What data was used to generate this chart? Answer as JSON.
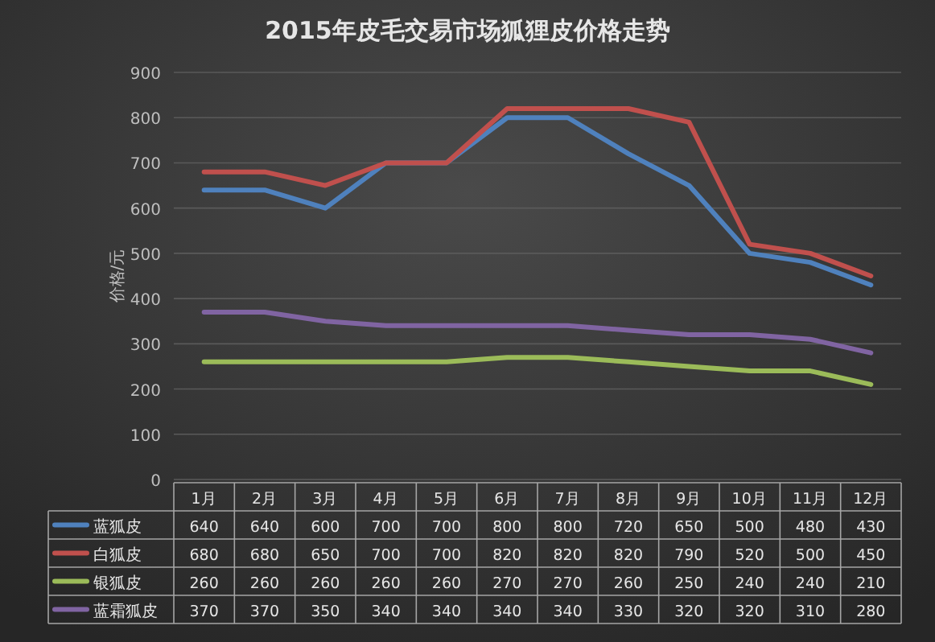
{
  "chart_data": {
    "type": "line",
    "title": "2015年皮毛交易市场狐狸皮价格走势",
    "ylabel": "价格/元",
    "categories": [
      "1月",
      "2月",
      "3月",
      "4月",
      "5月",
      "6月",
      "7月",
      "8月",
      "9月",
      "10月",
      "11月",
      "12月"
    ],
    "series": [
      {
        "name": "蓝狐皮",
        "color": "#4f81bd",
        "values": [
          640,
          640,
          600,
          700,
          700,
          800,
          800,
          720,
          650,
          500,
          480,
          430
        ]
      },
      {
        "name": "白狐皮",
        "color": "#c0504d",
        "values": [
          680,
          680,
          650,
          700,
          700,
          820,
          820,
          820,
          790,
          520,
          500,
          450
        ]
      },
      {
        "name": "银狐皮",
        "color": "#9bbb59",
        "values": [
          260,
          260,
          260,
          260,
          260,
          270,
          270,
          260,
          250,
          240,
          240,
          210
        ]
      },
      {
        "name": "蓝霜狐皮",
        "color": "#8064a2",
        "values": [
          370,
          370,
          350,
          340,
          340,
          340,
          340,
          330,
          320,
          320,
          310,
          280
        ]
      }
    ],
    "ylim": [
      0,
      900
    ],
    "yticks": [
      0,
      100,
      200,
      300,
      400,
      500,
      600,
      700,
      800,
      900
    ],
    "grid": "y",
    "legend": "bottom",
    "data_labels": true,
    "marker": "none",
    "line_style": "solid"
  }
}
